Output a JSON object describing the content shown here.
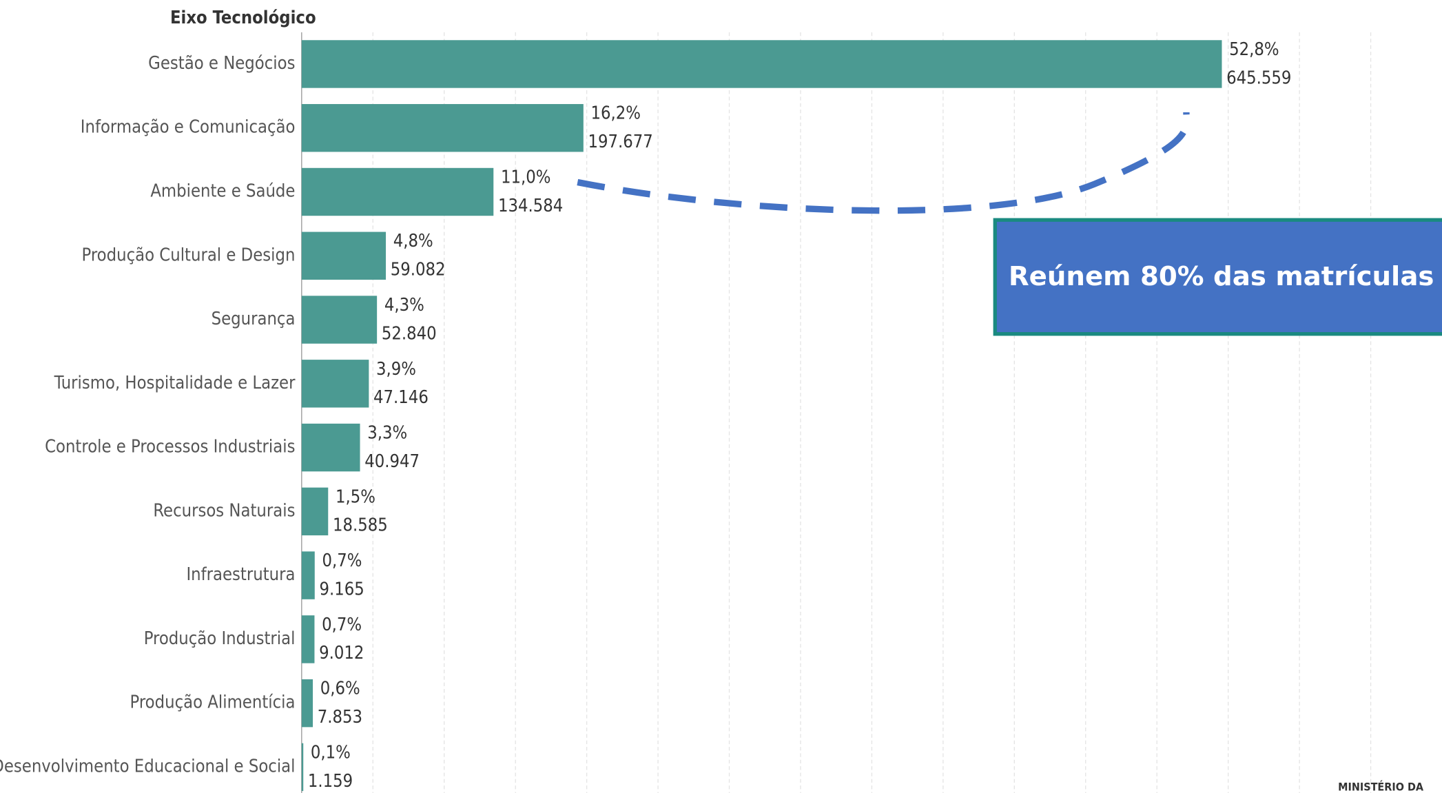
{
  "chart_data": {
    "type": "bar",
    "orientation": "horizontal",
    "axis_title": "Eixo Tecnológico",
    "categories": [
      "Gestão e Negócios",
      "Informação e Comunicação",
      "Ambiente e Saúde",
      "Produção Cultural e Design",
      "Segurança",
      "Turismo, Hospitalidade e Lazer",
      "Controle e Processos Industriais",
      "Recursos Naturais",
      "Infraestrutura",
      "Produção Industrial",
      "Produção Alimentícia",
      "Desenvolvimento Educacional e Social"
    ],
    "values": [
      645559,
      197677,
      134584,
      59082,
      52840,
      47146,
      40947,
      18585,
      9165,
      9012,
      7853,
      1159
    ],
    "value_labels": [
      "645.559",
      "197.677",
      "134.584",
      "59.082",
      "52.840",
      "47.146",
      "40.947",
      "18.585",
      "9.165",
      "9.012",
      "7.853",
      "1.159"
    ],
    "percent_values": [
      52.8,
      16.2,
      11.0,
      4.8,
      4.3,
      3.9,
      3.3,
      1.5,
      0.7,
      0.7,
      0.6,
      0.1
    ],
    "percent_labels": [
      "52,8%",
      "16,2%",
      "11,0%",
      "4,8%",
      "4,3%",
      "3,9%",
      "3,3%",
      "1,5%",
      "0,7%",
      "0,7%",
      "0,6%",
      "0,1%"
    ],
    "color": "#4b9a92",
    "xlim": [
      0,
      800000
    ],
    "xticks": [
      0,
      50000,
      100000,
      150000,
      200000,
      250000,
      300000,
      350000,
      400000,
      450000,
      500000,
      550000,
      600000,
      650000,
      700000,
      750000
    ],
    "grid": true,
    "annotation": "Reúnem 80% das matrículas",
    "footer": "MINISTÉRIO DA"
  }
}
